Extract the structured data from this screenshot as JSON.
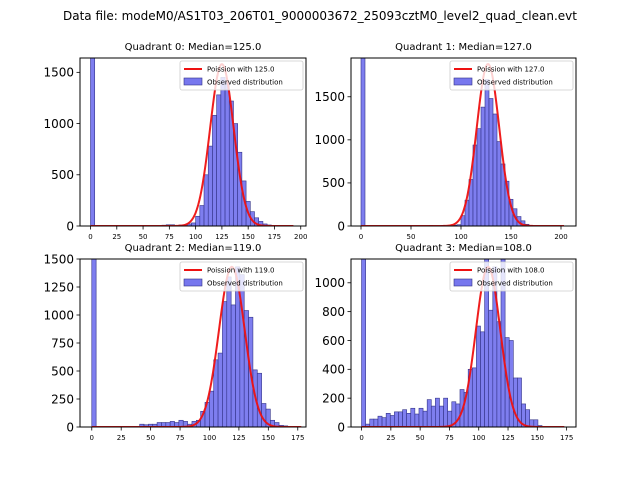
{
  "suptitle": "Data file: modeM0/AS1T03_206T01_9000003672_25093cztM0_level2_quad_clean.evt",
  "colors": {
    "bar_fill": "#7777ee",
    "bar_edge": "#333388",
    "poisson_line": "#ee1111",
    "axis": "#000000"
  },
  "chart_data": [
    {
      "type": "bar",
      "title": "Quadrant 0: Median=125.0",
      "xlabel": "",
      "ylabel": "",
      "xlim": [
        -10,
        205
      ],
      "ylim": [
        0,
        1640
      ],
      "xticks": [
        0,
        25,
        50,
        75,
        100,
        125,
        150,
        175,
        200
      ],
      "yticks": [
        0,
        500,
        1000,
        1500
      ],
      "legend": {
        "position": "top-right",
        "entries": [
          "Poission with 125.0",
          "Observed distribution"
        ]
      },
      "bin_width": 4,
      "bins": [
        [
          0,
          1640
        ],
        [
          68,
          8
        ],
        [
          72,
          12
        ],
        [
          76,
          12
        ],
        [
          84,
          10
        ],
        [
          88,
          12
        ],
        [
          92,
          20
        ],
        [
          96,
          30
        ],
        [
          100,
          95
        ],
        [
          104,
          200
        ],
        [
          108,
          500
        ],
        [
          112,
          780
        ],
        [
          116,
          1080
        ],
        [
          120,
          1280
        ],
        [
          124,
          1450
        ],
        [
          128,
          1400
        ],
        [
          132,
          1220
        ],
        [
          136,
          1000
        ],
        [
          140,
          720
        ],
        [
          144,
          440
        ],
        [
          148,
          240
        ],
        [
          152,
          140
        ],
        [
          156,
          80
        ],
        [
          160,
          45
        ],
        [
          164,
          20
        ],
        [
          168,
          10
        ],
        [
          172,
          4
        ]
      ],
      "poisson": {
        "mean": 125.0,
        "peak": 1580,
        "x_range": [
          0,
          193
        ]
      }
    },
    {
      "type": "bar",
      "title": "Quadrant 1: Median=127.0",
      "xlabel": "",
      "ylabel": "",
      "xlim": [
        -10,
        215
      ],
      "ylim": [
        0,
        1950
      ],
      "xticks": [
        0,
        50,
        100,
        150,
        200
      ],
      "yticks": [
        0,
        500,
        1000,
        1500
      ],
      "legend": {
        "position": "top-right",
        "entries": [
          "Poission with 127.0",
          "Observed distribution"
        ]
      },
      "bin_width": 4,
      "bins": [
        [
          0,
          1950
        ],
        [
          68,
          6
        ],
        [
          80,
          8
        ],
        [
          92,
          10
        ],
        [
          96,
          15
        ],
        [
          100,
          120
        ],
        [
          104,
          300
        ],
        [
          108,
          540
        ],
        [
          112,
          940
        ],
        [
          116,
          1130
        ],
        [
          120,
          1380
        ],
        [
          124,
          1700
        ],
        [
          128,
          1480
        ],
        [
          132,
          1300
        ],
        [
          136,
          980
        ],
        [
          140,
          720
        ],
        [
          144,
          520
        ],
        [
          148,
          310
        ],
        [
          152,
          200
        ],
        [
          156,
          110
        ],
        [
          160,
          60
        ],
        [
          164,
          20
        ],
        [
          168,
          8
        ],
        [
          172,
          4
        ]
      ],
      "poisson": {
        "mean": 127.0,
        "peak": 1880,
        "x_range": [
          0,
          203
        ]
      }
    },
    {
      "type": "bar",
      "title": "Quadrant 2: Median=119.0",
      "xlabel": "",
      "ylabel": "",
      "xlim": [
        -10,
        182
      ],
      "ylim": [
        0,
        1500
      ],
      "xticks": [
        0,
        25,
        50,
        75,
        100,
        125,
        150,
        175
      ],
      "yticks": [
        0,
        250,
        500,
        750,
        1000,
        1250,
        1500
      ],
      "legend": {
        "position": "top-right",
        "entries": [
          "Poission with 119.0",
          "Observed distribution"
        ]
      },
      "bin_width": 3.7,
      "bins": [
        [
          0,
          1500
        ],
        [
          40.7,
          25
        ],
        [
          44.4,
          20
        ],
        [
          48.1,
          25
        ],
        [
          51.8,
          25
        ],
        [
          55.5,
          40
        ],
        [
          59.2,
          40
        ],
        [
          62.9,
          40
        ],
        [
          66.6,
          50
        ],
        [
          70.3,
          40
        ],
        [
          74.0,
          60
        ],
        [
          77.7,
          50
        ],
        [
          81.4,
          25
        ],
        [
          85.1,
          50
        ],
        [
          88.8,
          60
        ],
        [
          92.5,
          140
        ],
        [
          96.2,
          220
        ],
        [
          99.9,
          320
        ],
        [
          103.6,
          600
        ],
        [
          107.3,
          660
        ],
        [
          111.0,
          1120
        ],
        [
          114.7,
          1340
        ],
        [
          118.4,
          1090
        ],
        [
          122.1,
          1430
        ],
        [
          125.8,
          1360
        ],
        [
          129.5,
          1040
        ],
        [
          133.2,
          980
        ],
        [
          136.9,
          510
        ],
        [
          140.6,
          480
        ],
        [
          144.3,
          210
        ],
        [
          148.0,
          160
        ],
        [
          151.7,
          60
        ],
        [
          155.4,
          40
        ],
        [
          159.1,
          15
        ],
        [
          162.8,
          10
        ]
      ],
      "poisson": {
        "mean": 119.0,
        "peak": 1430,
        "x_range": [
          0,
          178
        ]
      }
    },
    {
      "type": "bar",
      "title": "Quadrant 3: Median=108.0",
      "xlabel": "",
      "ylabel": "",
      "xlim": [
        -9,
        183
      ],
      "ylim": [
        0,
        1165
      ],
      "xticks": [
        0,
        25,
        50,
        75,
        100,
        125,
        150,
        175
      ],
      "yticks": [
        0,
        200,
        400,
        600,
        800,
        1000
      ],
      "legend": {
        "position": "top-right",
        "entries": [
          "Poission with 108.0",
          "Observed distribution"
        ]
      },
      "bin_width": 3.5,
      "bins": [
        [
          0,
          1165
        ],
        [
          3.5,
          20
        ],
        [
          7,
          55
        ],
        [
          10.5,
          55
        ],
        [
          14,
          75
        ],
        [
          17.5,
          65
        ],
        [
          21,
          95
        ],
        [
          24.5,
          80
        ],
        [
          28,
          105
        ],
        [
          31.5,
          105
        ],
        [
          35,
          120
        ],
        [
          38.5,
          95
        ],
        [
          42,
          130
        ],
        [
          45.5,
          90
        ],
        [
          49,
          130
        ],
        [
          52.5,
          110
        ],
        [
          56,
          190
        ],
        [
          59.5,
          145
        ],
        [
          63,
          200
        ],
        [
          66.5,
          145
        ],
        [
          70,
          200
        ],
        [
          73.5,
          110
        ],
        [
          77,
          175
        ],
        [
          80.5,
          160
        ],
        [
          84,
          260
        ],
        [
          87.5,
          240
        ],
        [
          91,
          400
        ],
        [
          94.5,
          410
        ],
        [
          98,
          700
        ],
        [
          101.5,
          660
        ],
        [
          105,
          1165
        ],
        [
          108.5,
          810
        ],
        [
          112,
          1110
        ],
        [
          115.5,
          730
        ],
        [
          119,
          1165
        ],
        [
          122.5,
          620
        ],
        [
          126,
          600
        ],
        [
          129.5,
          340
        ],
        [
          133,
          340
        ],
        [
          136.5,
          160
        ],
        [
          140,
          120
        ],
        [
          143.5,
          50
        ],
        [
          147,
          50
        ],
        [
          150.5,
          10
        ]
      ],
      "poisson": {
        "mean": 108.0,
        "peak": 1110,
        "x_range": [
          0,
          173
        ]
      }
    }
  ]
}
